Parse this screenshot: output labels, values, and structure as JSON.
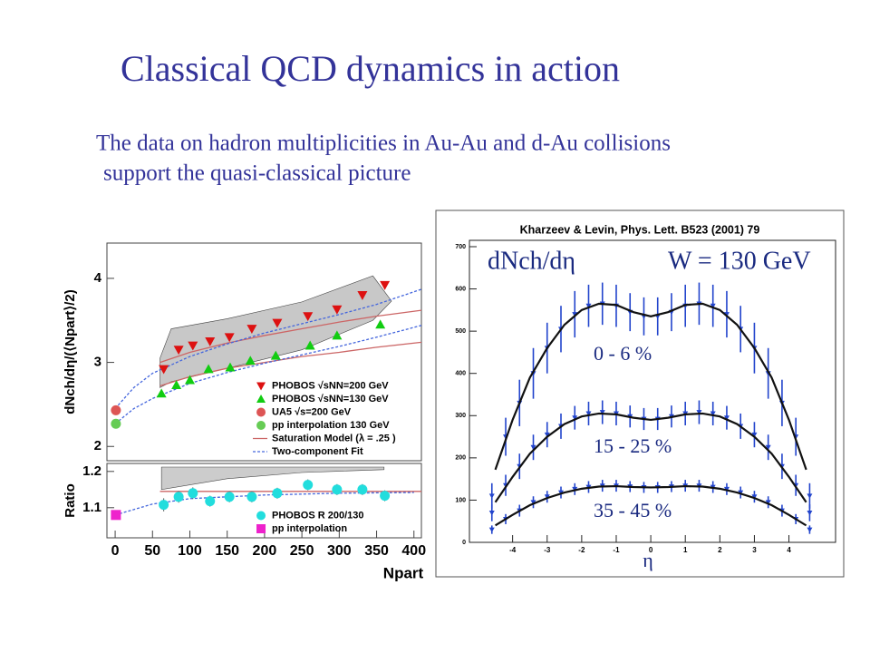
{
  "title": "Classical QCD dynamics in action",
  "body": [
    "The data on hadron multiplicities in Au-Au and d-Au collisions",
    "support the quasi-classical picture"
  ],
  "chart_data": [
    {
      "type": "scatter",
      "y_label": "dNch/dη/(⟨Npart⟩/2)",
      "xlim": [
        -11,
        410
      ],
      "ylim": [
        1.83,
        4.42
      ],
      "yticks": [
        2,
        3,
        4
      ],
      "legend": "lower right",
      "series": [
        {
          "name": "PHOBOS √sNN=200 GeV",
          "color": "#dd1111",
          "marker": "triangle-down",
          "x": [
            65,
            85,
            104,
            127,
            153,
            183,
            217,
            258,
            297,
            331,
            361
          ],
          "values": [
            2.92,
            3.15,
            3.2,
            3.25,
            3.3,
            3.4,
            3.47,
            3.55,
            3.63,
            3.8,
            3.92
          ]
        },
        {
          "name": "PHOBOS √sNN=130 GeV",
          "color": "#11cc11",
          "marker": "triangle-up",
          "x": [
            62,
            82,
            100,
            125,
            154,
            181,
            215,
            261,
            297,
            355
          ],
          "values": [
            2.63,
            2.73,
            2.79,
            2.92,
            2.94,
            3.02,
            3.08,
            3.2,
            3.32,
            3.45
          ]
        },
        {
          "name": "UA5 √s=200 GeV",
          "color": "#dd5555",
          "marker": "circle",
          "x": [
            1
          ],
          "values": [
            2.43
          ]
        },
        {
          "name": "pp interpolation 130 GeV",
          "color": "#66cc55",
          "marker": "circle",
          "x": [
            1
          ],
          "values": [
            2.27
          ]
        }
      ],
      "lines": [
        {
          "name": "Saturation Model (λ = .25 )",
          "color": "#cc6666",
          "dash": false,
          "x": [
            60,
            100,
            150,
            200,
            250,
            300,
            350,
            410
          ],
          "curves": [
            [
              3.0,
              3.12,
              3.23,
              3.32,
              3.4,
              3.48,
              3.55,
              3.62
            ],
            [
              2.72,
              2.83,
              2.93,
              3.0,
              3.07,
              3.12,
              3.18,
              3.24
            ]
          ]
        },
        {
          "name": "Two-component Fit",
          "color": "#4466dd",
          "dash": true,
          "x": [
            0,
            25,
            50,
            100,
            150,
            200,
            250,
            300,
            350,
            410
          ],
          "curves": [
            [
              2.45,
              2.7,
              2.87,
              3.07,
              3.22,
              3.35,
              3.46,
              3.57,
              3.69,
              3.87
            ],
            [
              2.27,
              2.45,
              2.57,
              2.75,
              2.88,
              2.99,
              3.09,
              3.19,
              3.3,
              3.44
            ]
          ]
        }
      ],
      "band": {
        "color": "#c8c8c8",
        "x": [
          60,
          75,
          150,
          250,
          345,
          370
        ],
        "upper": [
          3.05,
          3.4,
          3.52,
          3.72,
          4.03,
          3.73
        ],
        "lower": [
          2.7,
          2.77,
          2.93,
          3.15,
          3.5,
          3.73
        ]
      }
    },
    {
      "type": "scatter",
      "y_label": "Ratio",
      "x_label": "Npart",
      "xlim": [
        -11,
        410
      ],
      "ylim": [
        1.017,
        1.222
      ],
      "yticks": [
        1.1,
        1.2
      ],
      "xticks": [
        0,
        50,
        100,
        150,
        200,
        250,
        300,
        350,
        400
      ],
      "legend": "lower right",
      "series": [
        {
          "name": "PHOBOS R 200/130",
          "color": "#22dddd",
          "marker": "circle",
          "x": [
            65,
            85,
            104,
            127,
            153,
            183,
            217,
            258,
            297,
            331,
            361
          ],
          "values": [
            1.108,
            1.13,
            1.14,
            1.118,
            1.13,
            1.13,
            1.14,
            1.163,
            1.15,
            1.15,
            1.133
          ],
          "errors": [
            0.018,
            0.016,
            0.016,
            0.015,
            0.015,
            0.015,
            0.015,
            0.015,
            0.015,
            0.015,
            0.015
          ]
        },
        {
          "name": "pp interpolation",
          "color": "#ee22cc",
          "marker": "square",
          "x": [
            1
          ],
          "values": [
            1.08
          ]
        }
      ],
      "lines": [
        {
          "color": "#cc6666",
          "dash": false,
          "x": [
            60,
            410
          ],
          "curves": [
            [
              1.145,
              1.145
            ]
          ]
        },
        {
          "color": "#4466dd",
          "dash": true,
          "x": [
            0,
            50,
            100,
            200,
            300,
            400
          ],
          "curves": [
            [
              1.08,
              1.11,
              1.125,
              1.135,
              1.14,
              1.142
            ]
          ]
        }
      ],
      "band": {
        "color": "#cccccc",
        "x": [
          62,
          150,
          250,
          360
        ],
        "upper": [
          1.212,
          1.212,
          1.212,
          1.212
        ],
        "lower": [
          1.15,
          1.18,
          1.197,
          1.205
        ]
      }
    },
    {
      "type": "line",
      "caption": "Kharzeev & Levin, Phys. Lett. B523 (2001) 79",
      "title": "dNch/dη",
      "subtitle": "W = 130 GeV",
      "x_label": "η",
      "xlim": [
        -5.25,
        5.35
      ],
      "ylim": [
        0,
        715
      ],
      "xticks": [
        -4,
        -3,
        -2,
        -1,
        0,
        1,
        2,
        3,
        4
      ],
      "yticks": [
        0,
        100,
        200,
        300,
        400,
        500,
        600,
        700
      ],
      "curve_x": [
        -4.5,
        -4,
        -3.5,
        -3,
        -2.5,
        -2,
        -1.5,
        -1,
        -0.5,
        0,
        0.5,
        1,
        1.5,
        2,
        2.5,
        3,
        3.5,
        4,
        4.5
      ],
      "x": [
        -4.6,
        -4.2,
        -3.8,
        -3.4,
        -3.0,
        -2.6,
        -2.2,
        -1.8,
        -1.4,
        -1.0,
        -0.6,
        -0.2,
        0.2,
        0.6,
        1.0,
        1.4,
        1.8,
        2.2,
        2.6,
        3.0,
        3.4,
        3.8,
        4.2,
        4.6
      ],
      "series": [
        {
          "name": "0 - 6 %",
          "color": "#2244cc",
          "curve": [
            172,
            290,
            390,
            460,
            515,
            550,
            565,
            562,
            545,
            535,
            545,
            562,
            565,
            550,
            515,
            460,
            390,
            290,
            172
          ],
          "values": [
            110,
            250,
            330,
            400,
            460,
            505,
            540,
            560,
            565,
            560,
            545,
            535,
            535,
            545,
            560,
            565,
            560,
            540,
            505,
            460,
            400,
            330,
            250,
            110
          ],
          "errors": [
            30,
            45,
            55,
            60,
            60,
            55,
            55,
            50,
            50,
            50,
            45,
            45,
            45,
            45,
            50,
            50,
            50,
            55,
            55,
            60,
            60,
            55,
            45,
            30
          ]
        },
        {
          "name": "15 - 25 %",
          "color": "#2244cc",
          "curve": [
            95,
            155,
            210,
            250,
            280,
            298,
            305,
            303,
            295,
            290,
            295,
            303,
            305,
            298,
            280,
            250,
            210,
            155,
            95
          ],
          "values": [
            70,
            135,
            180,
            225,
            255,
            275,
            295,
            305,
            308,
            305,
            298,
            292,
            292,
            298,
            305,
            308,
            305,
            295,
            275,
            255,
            225,
            180,
            135,
            70
          ],
          "errors": [
            20,
            25,
            30,
            30,
            30,
            30,
            28,
            28,
            28,
            28,
            26,
            26,
            26,
            26,
            28,
            28,
            28,
            28,
            30,
            30,
            30,
            30,
            25,
            20
          ]
        },
        {
          "name": "35 - 45 %",
          "color": "#2244cc",
          "curve": [
            40,
            65,
            88,
            105,
            118,
            127,
            132,
            133,
            131,
            130,
            131,
            133,
            132,
            127,
            118,
            105,
            88,
            65,
            40
          ],
          "values": [
            30,
            55,
            75,
            95,
            108,
            118,
            126,
            131,
            134,
            134,
            132,
            130,
            130,
            132,
            134,
            134,
            131,
            126,
            118,
            108,
            95,
            75,
            55,
            30
          ],
          "errors": [
            10,
            12,
            14,
            14,
            14,
            14,
            14,
            14,
            14,
            14,
            13,
            13,
            13,
            13,
            14,
            14,
            14,
            14,
            14,
            14,
            14,
            14,
            12,
            10
          ]
        }
      ]
    }
  ]
}
